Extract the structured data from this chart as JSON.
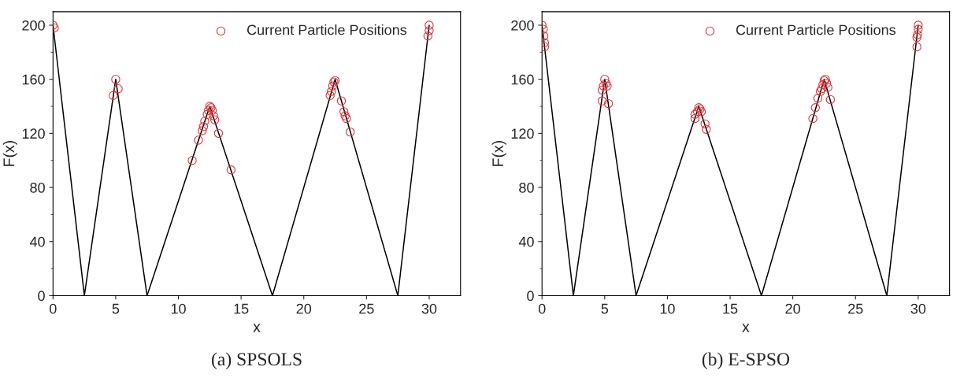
{
  "chart_data": [
    {
      "type": "line",
      "xlabel": "x",
      "ylabel": "F(x)",
      "xlim": [
        0,
        32.5
      ],
      "ylim": [
        0,
        210
      ],
      "xticks": [
        0,
        5,
        10,
        15,
        20,
        25,
        30
      ],
      "yticks": [
        0,
        40,
        80,
        120,
        160,
        200
      ],
      "grid": false,
      "legend": "top right",
      "annotations": [
        "(a) SPSOLS"
      ],
      "series": [
        {
          "color": "#000000",
          "marker": "none",
          "x": [
            0,
            2.5,
            5,
            7.5,
            12.5,
            17.5,
            22.5,
            27.5,
            30
          ],
          "values": [
            200,
            0,
            160,
            0,
            140,
            0,
            160,
            0,
            200
          ]
        },
        {
          "type": "scatter",
          "name": "Current Particle Positions",
          "color": "#e0363b",
          "marker": "circle",
          "x": [
            0,
            0.1,
            4.8,
            5,
            5.2,
            11.1,
            11.6,
            11.9,
            12.0,
            12.1,
            12.3,
            12.4,
            12.5,
            12.6,
            12.7,
            12.8,
            12.9,
            13.2,
            14.2,
            22.1,
            22.2,
            22.3,
            22.4,
            22.5,
            23.0,
            23.2,
            23.3,
            23.4,
            23.7,
            30,
            30,
            29.9
          ],
          "values": [
            200,
            198,
            148,
            160,
            153,
            100,
            115,
            122,
            125,
            129,
            134,
            137,
            140,
            139,
            137,
            133,
            130,
            120,
            93,
            148,
            151,
            155,
            158,
            159,
            144,
            136,
            133,
            131,
            121,
            200,
            196,
            192
          ]
        }
      ]
    },
    {
      "type": "line",
      "xlabel": "x",
      "ylabel": "F(x)",
      "xlim": [
        0,
        32.5
      ],
      "ylim": [
        0,
        210
      ],
      "xticks": [
        0,
        5,
        10,
        15,
        20,
        25,
        30
      ],
      "yticks": [
        0,
        40,
        80,
        120,
        160,
        200
      ],
      "grid": false,
      "legend": "top right",
      "annotations": [
        "(b) E-SPSO"
      ],
      "series": [
        {
          "color": "#000000",
          "marker": "none",
          "x": [
            0,
            2.5,
            5,
            7.5,
            12.5,
            17.5,
            22.5,
            27.5,
            30
          ],
          "values": [
            200,
            0,
            160,
            0,
            140,
            0,
            160,
            0,
            200
          ]
        },
        {
          "type": "scatter",
          "name": "Current Particle Positions",
          "color": "#e0363b",
          "marker": "circle",
          "x": [
            0,
            0.1,
            0.15,
            0.2,
            0.2,
            4.8,
            4.8,
            4.9,
            5,
            5.1,
            5.2,
            5.3,
            12.2,
            12.2,
            12.4,
            12.6,
            12.5,
            12.7,
            13.0,
            13.1,
            21.6,
            21.8,
            22.0,
            22.2,
            22.3,
            22.4,
            22.5,
            22.6,
            22.7,
            22.8,
            23.0,
            29.9,
            29.9,
            29.95,
            30,
            30
          ],
          "values": [
            200,
            197,
            192,
            187,
            184,
            144,
            152,
            155,
            160,
            157,
            155,
            142,
            131,
            134,
            136,
            138,
            139,
            136,
            127,
            123,
            131,
            139,
            146,
            151,
            153,
            156,
            159,
            160,
            157,
            154,
            145,
            184,
            191,
            193,
            197,
            200
          ]
        }
      ]
    }
  ]
}
